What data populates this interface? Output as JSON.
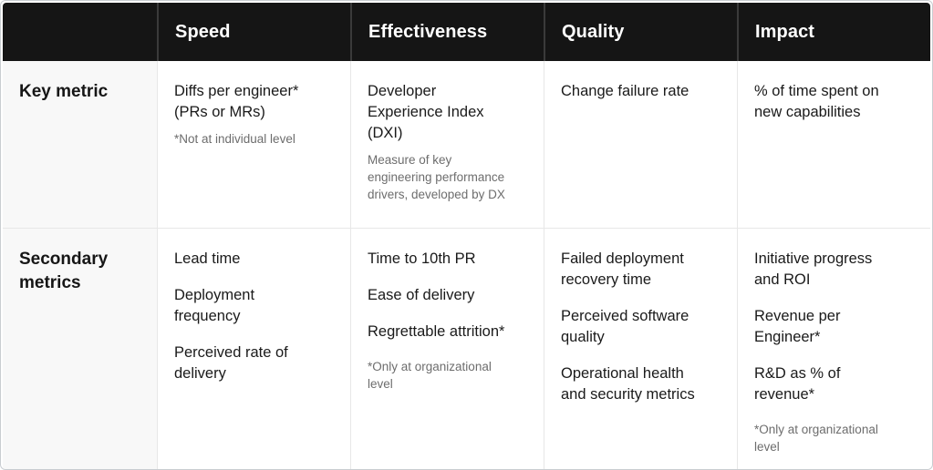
{
  "colors": {
    "background": "#ffffff",
    "outer_border": "#c9cdd1",
    "header_bg": "#151515",
    "header_text": "#ffffff",
    "header_divider": "#3a3a3a",
    "label_col_bg": "#f8f8f8",
    "cell_text": "#1a1a1a",
    "note_text": "#6d6d6d",
    "grid_line": "#e7e7e7"
  },
  "header": {
    "columns": [
      "Speed",
      "Effectiveness",
      "Quality",
      "Impact"
    ]
  },
  "rows": {
    "key_metric": {
      "label": "Key metric",
      "speed": {
        "main": "Diffs per engineer* (PRs or MRs)",
        "note": "*Not at individual level"
      },
      "effectiveness": {
        "main": "Developer Experience Index (DXI)",
        "note": "Measure of key engineering performance drivers, developed by DX"
      },
      "quality": {
        "main": "Change failure rate"
      },
      "impact": {
        "main": "% of time spent on new capabilities"
      }
    },
    "secondary_metrics": {
      "label": "Secondary metrics",
      "speed": {
        "items": [
          "Lead time",
          "Deployment frequency",
          "Perceived rate of delivery"
        ]
      },
      "effectiveness": {
        "items": [
          "Time to 10th PR",
          "Ease of delivery",
          "Regrettable attrition*"
        ],
        "note": "*Only at organizational level"
      },
      "quality": {
        "items": [
          "Failed deployment recovery time",
          "Perceived software quality",
          "Operational health and security metrics"
        ]
      },
      "impact": {
        "items": [
          "Initiative progress and ROI",
          "Revenue per Engineer*",
          "R&D as % of revenue*"
        ],
        "note": "*Only at organizational level"
      }
    }
  }
}
